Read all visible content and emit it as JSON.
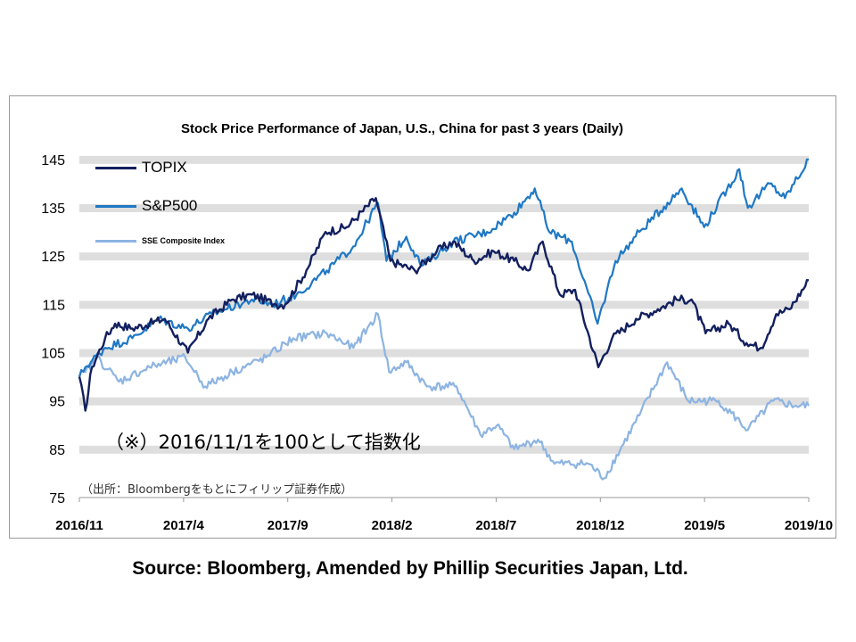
{
  "chart_data": {
    "type": "line",
    "title": "Stock Price Performance of Japan, U.S., China for past 3 years (Daily)",
    "x_tick_labels": [
      "2016/11",
      "2017/4",
      "2017/9",
      "2018/2",
      "2018/7",
      "2018/12",
      "2019/5",
      "2019/10"
    ],
    "y_ticks": [
      75,
      85,
      95,
      105,
      115,
      125,
      135,
      145
    ],
    "ylim": [
      75,
      147
    ],
    "x_range": [
      "2016-11-01",
      "2019-11-08"
    ],
    "grid": "horizontal bands",
    "legend_position": "top-left",
    "series": [
      {
        "name": "TOPIX",
        "color": "#13205f",
        "points": [
          [
            "2016-11-01",
            100
          ],
          [
            "2016-11-10",
            93
          ],
          [
            "2016-11-20",
            102
          ],
          [
            "2016-12-10",
            108
          ],
          [
            "2016-12-25",
            111
          ],
          [
            "2017-01-20",
            110
          ],
          [
            "2017-02-15",
            111
          ],
          [
            "2017-03-10",
            112
          ],
          [
            "2017-04-14",
            105
          ],
          [
            "2017-05-15",
            112
          ],
          [
            "2017-06-20",
            116
          ],
          [
            "2017-07-20",
            117
          ],
          [
            "2017-08-25",
            115
          ],
          [
            "2017-09-08",
            115
          ],
          [
            "2017-10-10",
            122
          ],
          [
            "2017-11-08",
            130
          ],
          [
            "2017-12-10",
            131
          ],
          [
            "2018-01-23",
            137
          ],
          [
            "2018-02-14",
            124
          ],
          [
            "2018-03-23",
            122
          ],
          [
            "2018-04-25",
            126
          ],
          [
            "2018-05-20",
            128
          ],
          [
            "2018-06-20",
            124
          ],
          [
            "2018-07-20",
            126
          ],
          [
            "2018-08-20",
            124
          ],
          [
            "2018-09-10",
            122
          ],
          [
            "2018-10-02",
            128
          ],
          [
            "2018-10-28",
            117
          ],
          [
            "2018-11-20",
            118
          ],
          [
            "2018-12-25",
            102
          ],
          [
            "2019-01-15",
            108
          ],
          [
            "2019-02-20",
            112
          ],
          [
            "2019-03-25",
            114
          ],
          [
            "2019-04-22",
            116
          ],
          [
            "2019-05-15",
            116
          ],
          [
            "2019-06-05",
            109
          ],
          [
            "2019-07-10",
            111
          ],
          [
            "2019-08-06",
            107
          ],
          [
            "2019-08-28",
            106
          ],
          [
            "2019-09-20",
            113
          ],
          [
            "2019-10-10",
            114
          ],
          [
            "2019-11-08",
            120
          ]
        ]
      },
      {
        "name": "S&P500",
        "color": "#1f78c4",
        "points": [
          [
            "2016-11-01",
            100
          ],
          [
            "2016-11-10",
            102
          ],
          [
            "2016-12-10",
            106
          ],
          [
            "2017-01-20",
            108
          ],
          [
            "2017-03-01",
            112
          ],
          [
            "2017-04-14",
            110
          ],
          [
            "2017-05-20",
            113
          ],
          [
            "2017-07-20",
            116
          ],
          [
            "2017-08-20",
            115
          ],
          [
            "2017-09-25",
            117
          ],
          [
            "2017-11-10",
            122
          ],
          [
            "2017-12-20",
            127
          ],
          [
            "2018-01-26",
            136
          ],
          [
            "2018-02-08",
            124
          ],
          [
            "2018-03-10",
            129
          ],
          [
            "2018-04-02",
            123
          ],
          [
            "2018-05-20",
            128
          ],
          [
            "2018-07-10",
            130
          ],
          [
            "2018-08-20",
            134
          ],
          [
            "2018-09-20",
            139
          ],
          [
            "2018-10-12",
            130
          ],
          [
            "2018-11-15",
            128
          ],
          [
            "2018-12-24",
            111
          ],
          [
            "2019-01-20",
            124
          ],
          [
            "2019-02-25",
            130
          ],
          [
            "2019-04-30",
            139
          ],
          [
            "2019-06-03",
            131
          ],
          [
            "2019-07-26",
            143
          ],
          [
            "2019-08-08",
            135
          ],
          [
            "2019-09-10",
            140
          ],
          [
            "2019-10-03",
            137
          ],
          [
            "2019-11-08",
            145
          ]
        ]
      },
      {
        "name": "SSE Composite Index",
        "color": "#8db4e2",
        "points": [
          [
            "2016-11-01",
            100
          ],
          [
            "2016-11-10",
            101
          ],
          [
            "2016-11-28",
            104
          ],
          [
            "2016-12-31",
            99
          ],
          [
            "2017-02-15",
            102
          ],
          [
            "2017-04-10",
            104
          ],
          [
            "2017-05-10",
            98
          ],
          [
            "2017-06-20",
            101
          ],
          [
            "2017-08-10",
            104
          ],
          [
            "2017-09-20",
            108
          ],
          [
            "2017-11-10",
            109
          ],
          [
            "2017-12-20",
            106
          ],
          [
            "2018-01-26",
            113
          ],
          [
            "2018-02-12",
            101
          ],
          [
            "2018-03-10",
            103
          ],
          [
            "2018-04-10",
            98
          ],
          [
            "2018-05-25",
            98
          ],
          [
            "2018-06-30",
            88
          ],
          [
            "2018-07-25",
            90
          ],
          [
            "2018-08-20",
            85
          ],
          [
            "2018-09-25",
            87
          ],
          [
            "2018-10-20",
            82
          ],
          [
            "2018-12-10",
            82
          ],
          [
            "2019-01-03",
            79
          ],
          [
            "2019-02-25",
            92
          ],
          [
            "2019-04-08",
            103
          ],
          [
            "2019-05-10",
            95
          ],
          [
            "2019-06-25",
            95
          ],
          [
            "2019-08-08",
            89
          ],
          [
            "2019-09-15",
            95
          ],
          [
            "2019-10-20",
            94
          ],
          [
            "2019-11-08",
            94
          ]
        ]
      }
    ],
    "annotations": {
      "note": "（※）2016/11/1を100として指数化",
      "source_note": "（出所：Bloombergをもとにフィリップ証券作成）"
    }
  },
  "source": "Source: Bloomberg, Amended by Phillip Securities Japan, Ltd."
}
